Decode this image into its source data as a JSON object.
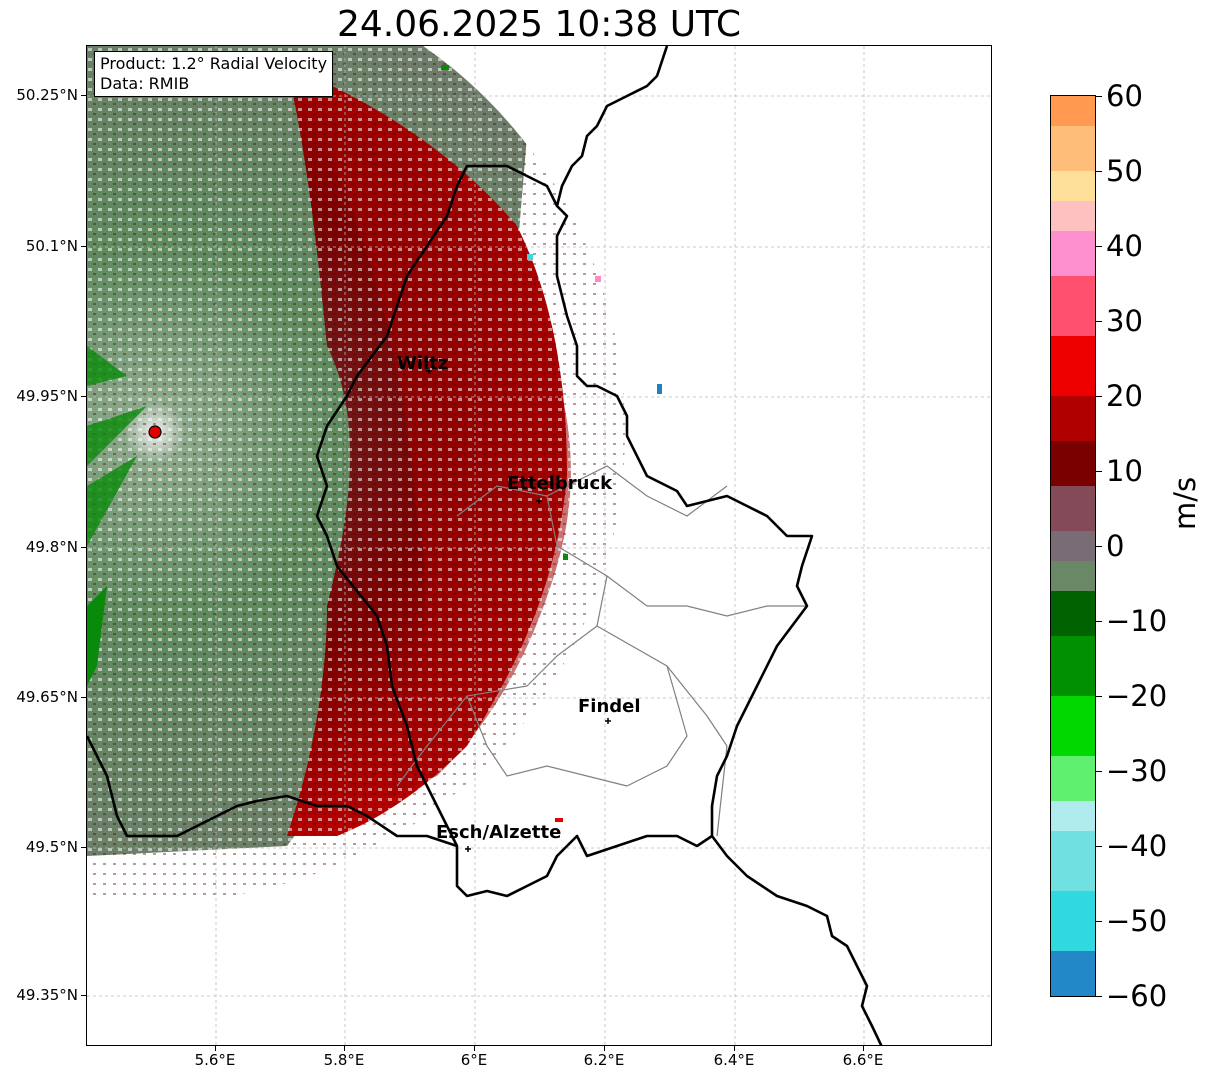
{
  "title": "24.06.2025 10:38 UTC",
  "infobox": {
    "product": "Product: 1.2° Radial Velocity",
    "data": "Data: RMIB"
  },
  "y_ticks": [
    "50.25°N",
    "50.1°N",
    "49.95°N",
    "49.8°N",
    "49.65°N",
    "49.5°N",
    "49.35°N"
  ],
  "x_ticks": [
    "5.6°E",
    "5.8°E",
    "6°E",
    "6.2°E",
    "6.4°E",
    "6.6°E"
  ],
  "cities": [
    "Wiltz",
    "Ettelbruck",
    "Findel",
    "Esch/Alzette"
  ],
  "colorbar": {
    "unit": "m/s",
    "ticks": [
      "60",
      "50",
      "40",
      "30",
      "20",
      "10",
      "0",
      "−10",
      "−20",
      "−30",
      "−40",
      "−50",
      "−60"
    ],
    "range": [
      -60,
      60
    ]
  },
  "colors": {
    "approaching_green": "#0a8a0a",
    "receding_red": "#a00000",
    "near_zero": "#7a6c74",
    "border": "#000000",
    "canton": "#808080",
    "radar_site": "#e00000"
  }
}
